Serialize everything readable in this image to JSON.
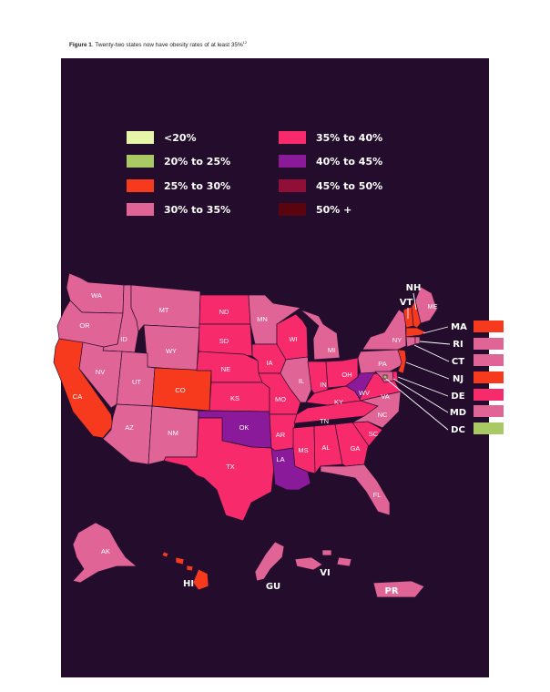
{
  "caption": {
    "label": "Figure 1",
    "text": ". Twenty-two states now have obesity rates of at least 35%",
    "ref": "12"
  },
  "legend": [
    {
      "label": "<20%",
      "color": "#e6f5a8"
    },
    {
      "label": "20% to 25%",
      "color": "#a9c964"
    },
    {
      "label": "25% to 30%",
      "color": "#f7391e"
    },
    {
      "label": "30% to 35%",
      "color": "#e06496"
    },
    {
      "label": "35% to 40%",
      "color": "#f72a6c"
    },
    {
      "label": "40% to 45%",
      "color": "#8a1a9a"
    },
    {
      "label": "45% to 50%",
      "color": "#8f0f36"
    },
    {
      "label": "50% +",
      "color": "#5a0410"
    }
  ],
  "states": {
    "WA": "30% to 35%",
    "OR": "30% to 35%",
    "CA": "25% to 30%",
    "ID": "30% to 35%",
    "NV": "30% to 35%",
    "MT": "30% to 35%",
    "WY": "30% to 35%",
    "UT": "30% to 35%",
    "AZ": "30% to 35%",
    "CO": "25% to 30%",
    "NM": "30% to 35%",
    "ND": "35% to 40%",
    "SD": "35% to 40%",
    "NE": "35% to 40%",
    "KS": "35% to 40%",
    "OK": "40% to 45%",
    "TX": "35% to 40%",
    "MN": "30% to 35%",
    "IA": "35% to 40%",
    "MO": "35% to 40%",
    "AR": "35% to 40%",
    "LA": "40% to 45%",
    "WI": "35% to 40%",
    "IL": "30% to 35%",
    "MI": "30% to 35%",
    "IN": "35% to 40%",
    "OH": "35% to 40%",
    "KY": "35% to 40%",
    "TN": "35% to 40%",
    "MS": "35% to 40%",
    "AL": "35% to 40%",
    "GA": "35% to 40%",
    "FL": "30% to 35%",
    "SC": "35% to 40%",
    "NC": "30% to 35%",
    "VA": "35% to 40%",
    "WV": "40% to 45%",
    "PA": "30% to 35%",
    "NY": "30% to 35%",
    "ME": "30% to 35%",
    "AK": "30% to 35%",
    "HI": "25% to 30%",
    "GU": "30% to 35%",
    "VI": "30% to 35%",
    "PR": "30% to 35%",
    "NH": "25% to 30%",
    "VT": "25% to 30%",
    "MA": "25% to 30%",
    "RI": "30% to 35%",
    "CT": "30% to 35%",
    "NJ": "25% to 30%",
    "DE": "35% to 40%",
    "MD": "30% to 35%",
    "DC": "20% to 25%"
  },
  "callouts": [
    "MA",
    "RI",
    "CT",
    "NJ",
    "DE",
    "MD",
    "DC"
  ]
}
